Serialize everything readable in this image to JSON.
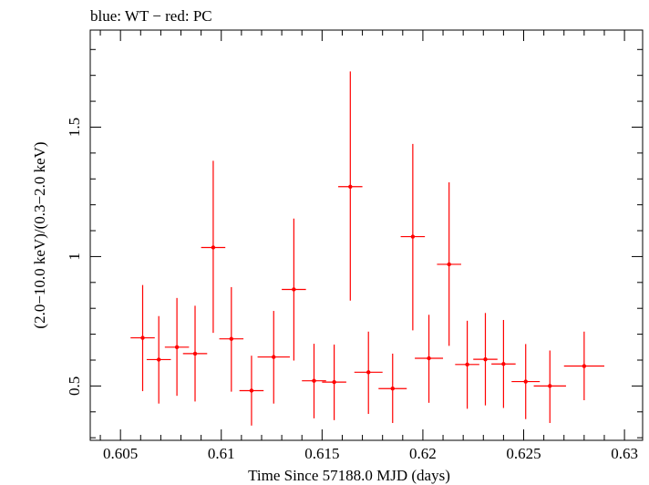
{
  "chart_data": {
    "type": "scatter",
    "title": "blue: WT − red: PC",
    "xlabel": "Time Since 57188.0 MJD (days)",
    "ylabel": "(2.0−10.0 keV)/(0.3−2.0 keV)",
    "xlim": [
      0.6035,
      0.6309
    ],
    "ylim": [
      0.29,
      1.875
    ],
    "x_ticks": [
      {
        "v": 0.605,
        "label": "0.605"
      },
      {
        "v": 0.61,
        "label": "0.61"
      },
      {
        "v": 0.615,
        "label": "0.615"
      },
      {
        "v": 0.62,
        "label": "0.62"
      },
      {
        "v": 0.625,
        "label": "0.625"
      },
      {
        "v": 0.63,
        "label": "0.63"
      }
    ],
    "y_ticks": [
      {
        "v": 0.5,
        "label": "0.5"
      },
      {
        "v": 1.0,
        "label": "1"
      },
      {
        "v": 1.5,
        "label": "1.5"
      }
    ],
    "grid": false,
    "legend": "none",
    "series": [
      {
        "color": "#ff0000",
        "points": [
          {
            "x": 0.6061,
            "y": 0.686,
            "xerr": 0.0006,
            "ylo": 0.48,
            "yhi": 0.89
          },
          {
            "x": 0.6069,
            "y": 0.602,
            "xerr": 0.0006,
            "ylo": 0.432,
            "yhi": 0.77
          },
          {
            "x": 0.6078,
            "y": 0.65,
            "xerr": 0.0006,
            "ylo": 0.462,
            "yhi": 0.84
          },
          {
            "x": 0.6087,
            "y": 0.625,
            "xerr": 0.0006,
            "ylo": 0.44,
            "yhi": 0.81
          },
          {
            "x": 0.6096,
            "y": 1.035,
            "xerr": 0.0006,
            "ylo": 0.705,
            "yhi": 1.37
          },
          {
            "x": 0.6105,
            "y": 0.682,
            "xerr": 0.0006,
            "ylo": 0.478,
            "yhi": 0.882
          },
          {
            "x": 0.6115,
            "y": 0.482,
            "xerr": 0.0006,
            "ylo": 0.347,
            "yhi": 0.617
          },
          {
            "x": 0.6126,
            "y": 0.612,
            "xerr": 0.0008,
            "ylo": 0.432,
            "yhi": 0.79
          },
          {
            "x": 0.6136,
            "y": 0.873,
            "xerr": 0.0006,
            "ylo": 0.598,
            "yhi": 1.147
          },
          {
            "x": 0.6146,
            "y": 0.52,
            "xerr": 0.0006,
            "ylo": 0.375,
            "yhi": 0.663
          },
          {
            "x": 0.6156,
            "y": 0.515,
            "xerr": 0.0006,
            "ylo": 0.368,
            "yhi": 0.66
          },
          {
            "x": 0.6164,
            "y": 1.27,
            "xerr": 0.0006,
            "ylo": 0.83,
            "yhi": 1.715
          },
          {
            "x": 0.6173,
            "y": 0.553,
            "xerr": 0.0007,
            "ylo": 0.392,
            "yhi": 0.71
          },
          {
            "x": 0.6185,
            "y": 0.49,
            "xerr": 0.0007,
            "ylo": 0.357,
            "yhi": 0.625
          },
          {
            "x": 0.6195,
            "y": 1.077,
            "xerr": 0.0006,
            "ylo": 0.715,
            "yhi": 1.435
          },
          {
            "x": 0.6203,
            "y": 0.607,
            "xerr": 0.0007,
            "ylo": 0.435,
            "yhi": 0.775
          },
          {
            "x": 0.6213,
            "y": 0.97,
            "xerr": 0.0006,
            "ylo": 0.655,
            "yhi": 1.287
          },
          {
            "x": 0.6222,
            "y": 0.583,
            "xerr": 0.0006,
            "ylo": 0.412,
            "yhi": 0.752
          },
          {
            "x": 0.6231,
            "y": 0.603,
            "xerr": 0.0006,
            "ylo": 0.425,
            "yhi": 0.782
          },
          {
            "x": 0.624,
            "y": 0.585,
            "xerr": 0.0006,
            "ylo": 0.415,
            "yhi": 0.755
          },
          {
            "x": 0.6251,
            "y": 0.517,
            "xerr": 0.0007,
            "ylo": 0.372,
            "yhi": 0.662
          },
          {
            "x": 0.6263,
            "y": 0.5,
            "xerr": 0.0008,
            "ylo": 0.357,
            "yhi": 0.637
          },
          {
            "x": 0.628,
            "y": 0.577,
            "xerr": 0.001,
            "ylo": 0.445,
            "yhi": 0.71
          }
        ]
      }
    ]
  }
}
